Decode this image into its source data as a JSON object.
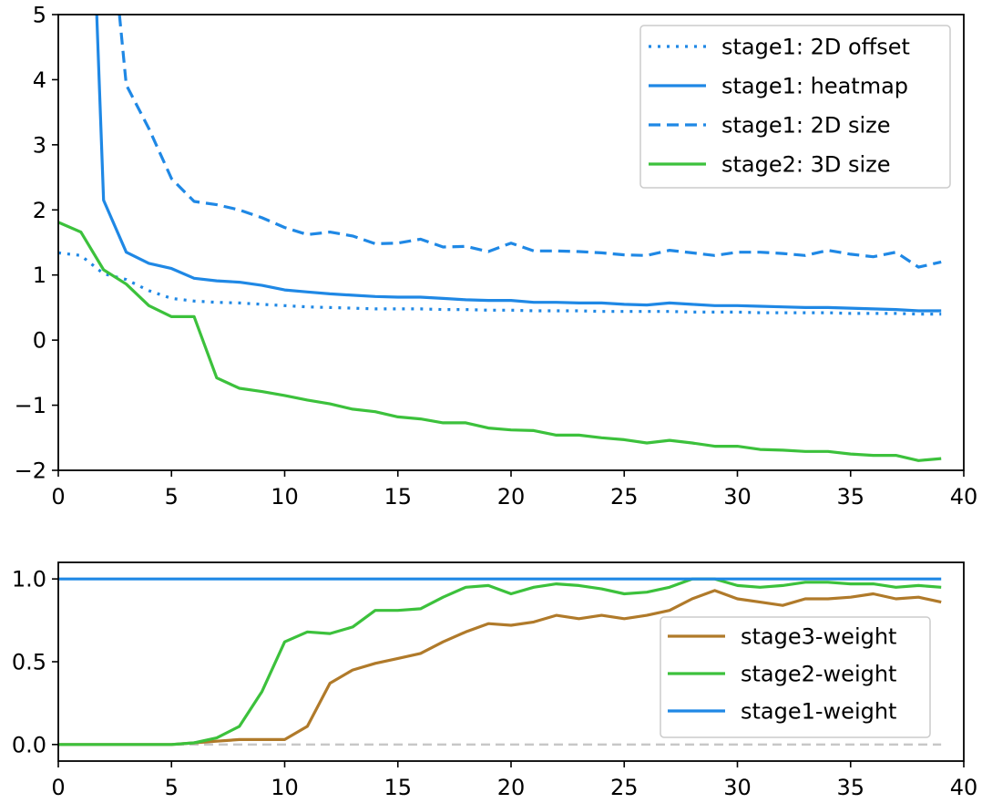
{
  "chart_data": [
    {
      "type": "line",
      "title": "",
      "xlabel": "",
      "ylabel": "",
      "xlim": [
        0,
        40
      ],
      "ylim": [
        -2,
        5
      ],
      "xticks": [
        0,
        5,
        10,
        15,
        20,
        25,
        30,
        35,
        40
      ],
      "yticks": [
        -2,
        -1,
        0,
        1,
        2,
        3,
        4,
        5
      ],
      "ytick_labels": [
        "−2",
        "−1",
        "0",
        "1",
        "2",
        "3",
        "4",
        "5"
      ],
      "legend_position": "top-right",
      "series": [
        {
          "name": "stage1: 2D offset",
          "color": "#1f88e5",
          "style": "dotted",
          "x": [
            0,
            1,
            2,
            3,
            4,
            5,
            6,
            7,
            8,
            9,
            10,
            11,
            12,
            13,
            14,
            15,
            16,
            17,
            18,
            19,
            20,
            21,
            22,
            23,
            24,
            25,
            26,
            27,
            28,
            29,
            30,
            31,
            32,
            33,
            34,
            35,
            36,
            37,
            38,
            39
          ],
          "values": [
            1.34,
            1.3,
            1.02,
            0.93,
            0.76,
            0.64,
            0.6,
            0.58,
            0.57,
            0.55,
            0.53,
            0.51,
            0.5,
            0.49,
            0.48,
            0.48,
            0.48,
            0.47,
            0.47,
            0.46,
            0.46,
            0.45,
            0.45,
            0.45,
            0.44,
            0.44,
            0.44,
            0.44,
            0.43,
            0.43,
            0.43,
            0.42,
            0.42,
            0.42,
            0.42,
            0.41,
            0.41,
            0.41,
            0.4,
            0.4
          ]
        },
        {
          "name": "stage1: heatmap",
          "color": "#1f88e5",
          "style": "solid",
          "x": [
            1.7,
            2,
            3,
            4,
            5,
            6,
            7,
            8,
            9,
            10,
            11,
            12,
            13,
            14,
            15,
            16,
            17,
            18,
            19,
            20,
            21,
            22,
            23,
            24,
            25,
            26,
            27,
            28,
            29,
            30,
            31,
            32,
            33,
            34,
            35,
            36,
            37,
            38,
            39
          ],
          "values": [
            5.0,
            2.15,
            1.35,
            1.18,
            1.1,
            0.95,
            0.91,
            0.89,
            0.84,
            0.77,
            0.74,
            0.71,
            0.69,
            0.67,
            0.66,
            0.66,
            0.64,
            0.62,
            0.61,
            0.61,
            0.58,
            0.58,
            0.57,
            0.57,
            0.55,
            0.54,
            0.57,
            0.55,
            0.53,
            0.53,
            0.52,
            0.51,
            0.5,
            0.5,
            0.49,
            0.48,
            0.47,
            0.45,
            0.45
          ]
        },
        {
          "name": "stage1: 2D size",
          "color": "#1f88e5",
          "style": "dashed",
          "x": [
            2.7,
            3,
            4,
            5,
            6,
            7,
            8,
            9,
            10,
            11,
            12,
            13,
            14,
            15,
            16,
            17,
            18,
            19,
            20,
            21,
            22,
            23,
            24,
            25,
            26,
            27,
            28,
            29,
            30,
            31,
            32,
            33,
            34,
            35,
            36,
            37,
            38,
            39
          ],
          "values": [
            5.0,
            3.92,
            3.25,
            2.48,
            2.13,
            2.08,
            2.0,
            1.88,
            1.73,
            1.62,
            1.66,
            1.6,
            1.48,
            1.49,
            1.55,
            1.43,
            1.44,
            1.36,
            1.49,
            1.37,
            1.37,
            1.36,
            1.34,
            1.31,
            1.3,
            1.38,
            1.34,
            1.3,
            1.35,
            1.35,
            1.33,
            1.3,
            1.38,
            1.32,
            1.28,
            1.35,
            1.12,
            1.2
          ]
        },
        {
          "name": "stage2: 3D size",
          "color": "#3cc13c",
          "style": "solid",
          "x": [
            0,
            1,
            2,
            3,
            4,
            5,
            6,
            7,
            8,
            9,
            10,
            11,
            12,
            13,
            14,
            15,
            16,
            17,
            18,
            19,
            20,
            21,
            22,
            23,
            24,
            25,
            26,
            27,
            28,
            29,
            30,
            31,
            32,
            33,
            34,
            35,
            36,
            37,
            38,
            39
          ],
          "values": [
            1.81,
            1.66,
            1.08,
            0.86,
            0.53,
            0.36,
            0.36,
            -0.58,
            -0.74,
            -0.79,
            -0.85,
            -0.92,
            -0.98,
            -1.06,
            -1.1,
            -1.18,
            -1.21,
            -1.27,
            -1.27,
            -1.35,
            -1.38,
            -1.39,
            -1.46,
            -1.46,
            -1.5,
            -1.53,
            -1.58,
            -1.54,
            -1.58,
            -1.63,
            -1.63,
            -1.68,
            -1.69,
            -1.71,
            -1.71,
            -1.75,
            -1.77,
            -1.77,
            -1.85,
            -1.82
          ]
        }
      ]
    },
    {
      "type": "line",
      "title": "",
      "xlabel": "",
      "ylabel": "",
      "xlim": [
        0,
        40
      ],
      "ylim": [
        -0.1,
        1.1
      ],
      "xticks": [
        0,
        5,
        10,
        15,
        20,
        25,
        30,
        35,
        40
      ],
      "yticks": [
        0.0,
        0.5,
        1.0
      ],
      "ytick_labels": [
        "0.0",
        "0.5",
        "1.0"
      ],
      "legend_position": "lower-right",
      "reference_line": {
        "y": 0,
        "color": "#c8c8c8",
        "style": "dashed"
      },
      "series": [
        {
          "name": "stage3-weight",
          "color": "#b07a2a",
          "style": "solid",
          "x": [
            0,
            1,
            2,
            3,
            4,
            5,
            6,
            7,
            8,
            9,
            10,
            11,
            12,
            13,
            14,
            15,
            16,
            17,
            18,
            19,
            20,
            21,
            22,
            23,
            24,
            25,
            26,
            27,
            28,
            29,
            30,
            31,
            32,
            33,
            34,
            35,
            36,
            37,
            38,
            39
          ],
          "values": [
            0,
            0,
            0,
            0,
            0,
            0,
            0.01,
            0.02,
            0.03,
            0.03,
            0.03,
            0.11,
            0.37,
            0.45,
            0.49,
            0.52,
            0.55,
            0.62,
            0.68,
            0.73,
            0.72,
            0.74,
            0.78,
            0.76,
            0.78,
            0.76,
            0.78,
            0.81,
            0.88,
            0.93,
            0.88,
            0.86,
            0.84,
            0.88,
            0.88,
            0.89,
            0.91,
            0.88,
            0.89,
            0.86
          ]
        },
        {
          "name": "stage2-weight",
          "color": "#3cc13c",
          "style": "solid",
          "x": [
            0,
            1,
            2,
            3,
            4,
            5,
            6,
            7,
            8,
            9,
            10,
            11,
            12,
            13,
            14,
            15,
            16,
            17,
            18,
            19,
            20,
            21,
            22,
            23,
            24,
            25,
            26,
            27,
            28,
            29,
            30,
            31,
            32,
            33,
            34,
            35,
            36,
            37,
            38,
            39
          ],
          "values": [
            0,
            0,
            0,
            0,
            0,
            0,
            0.01,
            0.04,
            0.11,
            0.32,
            0.62,
            0.68,
            0.67,
            0.71,
            0.81,
            0.81,
            0.82,
            0.89,
            0.95,
            0.96,
            0.91,
            0.95,
            0.97,
            0.96,
            0.94,
            0.91,
            0.92,
            0.95,
            1.0,
            1.0,
            0.96,
            0.95,
            0.96,
            0.98,
            0.98,
            0.97,
            0.97,
            0.95,
            0.96,
            0.95
          ]
        },
        {
          "name": "stage1-weight",
          "color": "#1f88e5",
          "style": "solid",
          "x": [
            0,
            39
          ],
          "values": [
            1.0,
            1.0
          ]
        }
      ]
    }
  ]
}
